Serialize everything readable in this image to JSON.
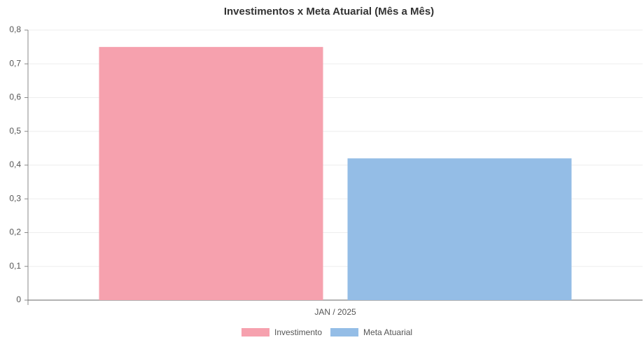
{
  "chart_data": {
    "type": "bar",
    "title": "Investimentos x Meta Atuarial (Mês a Mês)",
    "categories": [
      "JAN / 2025"
    ],
    "series": [
      {
        "name": "Investimento",
        "color": "#f6a1ae",
        "values": [
          0.75
        ]
      },
      {
        "name": "Meta Atuarial",
        "color": "#94bde6",
        "values": [
          0.42
        ]
      }
    ],
    "ylim": [
      0,
      0.8
    ],
    "yticks": [
      0,
      {
        "value": 0.1,
        "label": "0,1"
      },
      {
        "value": 0.2,
        "label": "0,2"
      },
      {
        "value": 0.3,
        "label": "0,3"
      },
      {
        "value": 0.4,
        "label": "0,4"
      },
      {
        "value": 0.5,
        "label": "0,5"
      },
      {
        "value": 0.6,
        "label": "0,6"
      },
      {
        "value": 0.7,
        "label": "0,7"
      },
      {
        "value": 0.8,
        "label": "0,8"
      }
    ],
    "grid": true,
    "legend": "bottom"
  }
}
